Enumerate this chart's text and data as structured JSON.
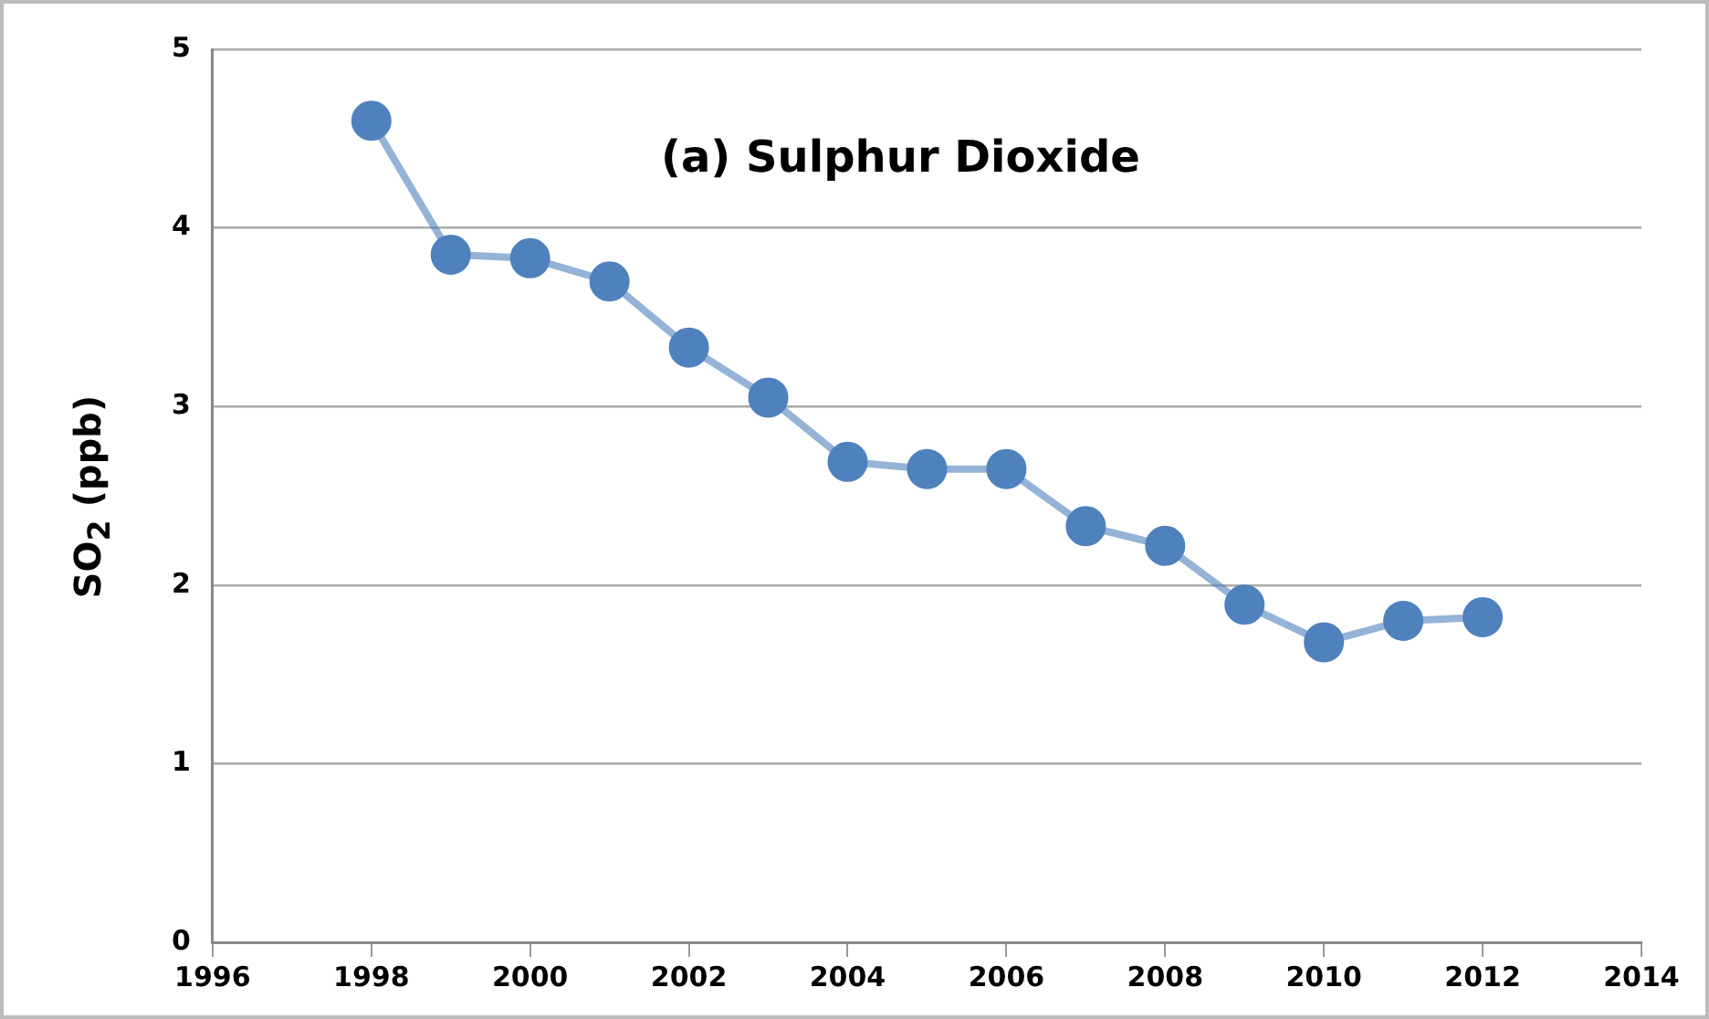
{
  "chart_data": {
    "type": "line",
    "title": "(a) Sulphur Dioxide",
    "ylabel": "SO$_{2}$ (ppb)",
    "x": [
      1998,
      1999,
      2000,
      2001,
      2002,
      2003,
      2004,
      2005,
      2006,
      2007,
      2008,
      2009,
      2010,
      2011,
      2012
    ],
    "series": [
      {
        "color": "#4f81bd",
        "values": [
          4.6,
          3.85,
          3.83,
          3.7,
          3.33,
          3.05,
          2.69,
          2.65,
          2.65,
          2.33,
          2.22,
          1.89,
          1.68,
          1.8,
          1.82
        ]
      }
    ],
    "xlim": [
      1996,
      2014
    ],
    "xticks": [
      1996,
      1998,
      2000,
      2002,
      2004,
      2006,
      2008,
      2010,
      2012,
      2014
    ],
    "ylim": [
      0,
      5
    ],
    "yticks": [
      0,
      1,
      2,
      3,
      4,
      5
    ],
    "grid": "y",
    "legend": false,
    "marker": "circle",
    "line_style": "solid"
  }
}
